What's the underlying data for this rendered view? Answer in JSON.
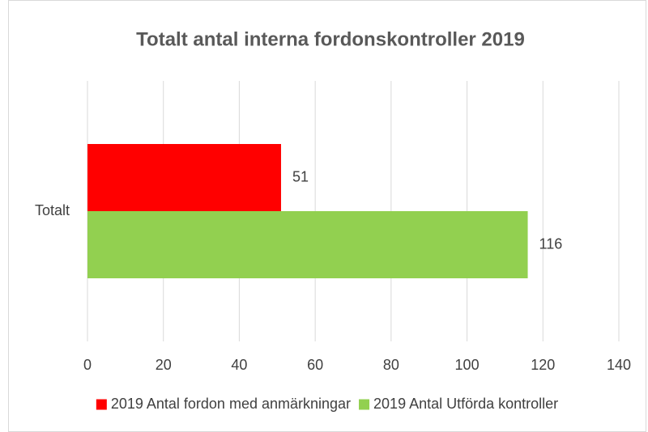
{
  "chart_data": {
    "type": "hbar",
    "title": "Totalt antal interna fordonskontroller 2019",
    "categories": [
      "Totalt"
    ],
    "series": [
      {
        "name": "2019 Antal fordon med anmärkningar",
        "color": "#ff0000",
        "values": [
          51
        ]
      },
      {
        "name": "2019 Antal Utförda kontroller",
        "color": "#92d050",
        "values": [
          116
        ]
      }
    ],
    "xlim": [
      0,
      140
    ],
    "xticks": [
      0,
      20,
      40,
      60,
      80,
      100,
      120,
      140
    ],
    "grid": true,
    "legend": "bottom",
    "data_labels": true
  }
}
